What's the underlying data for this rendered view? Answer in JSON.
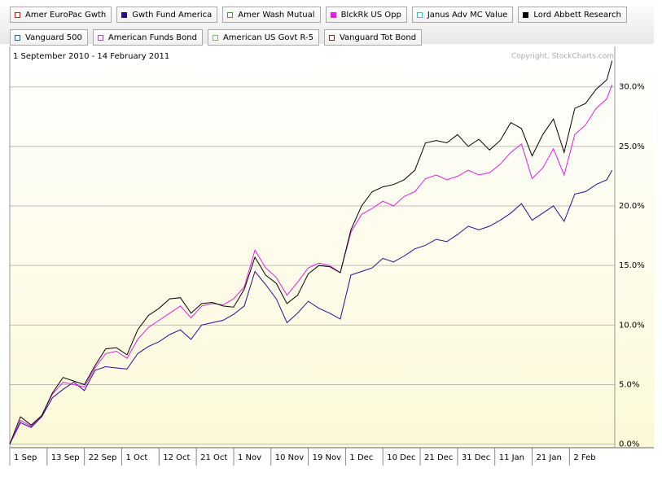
{
  "chart_data": {
    "type": "line",
    "subtitle": "1 September 2010 - 14 February 2011",
    "annotation": "Copyright, StockCharts.com",
    "x": [
      0,
      2,
      4,
      6,
      8,
      10,
      12,
      14,
      16,
      18,
      20,
      22,
      24,
      26,
      28,
      30,
      32,
      34,
      36,
      38,
      40,
      42,
      44,
      46,
      48,
      50,
      52,
      54,
      56,
      58,
      60,
      62,
      64,
      66,
      68,
      70,
      72,
      74,
      76,
      78,
      80,
      82,
      84,
      86,
      88,
      90,
      92,
      94,
      96,
      98,
      100,
      102,
      104,
      106,
      108,
      110,
      112,
      113
    ],
    "xlim": [
      0,
      113.5
    ],
    "xticks": [
      {
        "value": 0,
        "label": "1 Sep"
      },
      {
        "value": 7,
        "label": "13 Sep"
      },
      {
        "value": 14,
        "label": "22 Sep"
      },
      {
        "value": 21,
        "label": "1 Oct"
      },
      {
        "value": 28,
        "label": "12 Oct"
      },
      {
        "value": 35,
        "label": "21 Oct"
      },
      {
        "value": 42,
        "label": "1 Nov"
      },
      {
        "value": 49,
        "label": "10 Nov"
      },
      {
        "value": 56,
        "label": "19 Nov"
      },
      {
        "value": 63,
        "label": "1 Dec"
      },
      {
        "value": 70,
        "label": "10 Dec"
      },
      {
        "value": 77,
        "label": "21 Dec"
      },
      {
        "value": 84,
        "label": "31 Dec"
      },
      {
        "value": 91,
        "label": "11 Jan"
      },
      {
        "value": 98,
        "label": "21 Jan"
      },
      {
        "value": 105,
        "label": "2 Feb"
      }
    ],
    "ylim": [
      -0.3,
      33.4
    ],
    "yticks": [
      {
        "value": 0,
        "label": "0.0%"
      },
      {
        "value": 5,
        "label": "5.0%"
      },
      {
        "value": 10,
        "label": "10.0%"
      },
      {
        "value": 15,
        "label": "15.0%"
      },
      {
        "value": 20,
        "label": "20.0%"
      },
      {
        "value": 25,
        "label": "25.0%"
      },
      {
        "value": 30,
        "label": "30.0%"
      }
    ],
    "grid": true,
    "series": [
      {
        "name": "Amer EuroPac Gwth",
        "color": "#cc2222"
      },
      {
        "name": "Gwth Fund America",
        "color": "#2a0a99",
        "values": [
          0,
          1.8,
          1.4,
          2.3,
          3.9,
          4.6,
          5.2,
          4.5,
          6.2,
          6.5,
          6.4,
          6.3,
          7.6,
          8.2,
          8.6,
          9.2,
          9.6,
          8.8,
          10.0,
          10.2,
          10.4,
          10.9,
          11.6,
          14.5,
          13.4,
          12.2,
          10.2,
          11.0,
          12.0,
          11.4,
          11.0,
          10.5,
          14.2,
          14.5,
          14.8,
          15.6,
          15.3,
          15.8,
          16.4,
          16.7,
          17.2,
          17.0,
          17.6,
          18.3,
          18.0,
          18.3,
          18.8,
          19.4,
          20.2,
          18.8,
          19.4,
          20.0,
          18.7,
          21.0,
          21.2,
          21.8,
          22.2,
          23.0
        ]
      },
      {
        "name": "Amer Wash Mutual",
        "color": "#22aa22"
      },
      {
        "name": "BlckRk US Opp",
        "color": "#e020e0",
        "values": [
          0,
          2.0,
          1.5,
          2.4,
          4.2,
          5.2,
          5.0,
          4.8,
          6.4,
          7.6,
          7.8,
          7.2,
          8.8,
          9.8,
          10.4,
          11.0,
          11.6,
          10.6,
          11.6,
          11.8,
          11.7,
          12.2,
          13.2,
          16.3,
          14.8,
          14.0,
          12.5,
          13.6,
          14.8,
          15.2,
          15.0,
          14.4,
          17.8,
          19.3,
          19.8,
          20.4,
          20.0,
          20.8,
          21.2,
          22.3,
          22.6,
          22.2,
          22.5,
          23.0,
          22.6,
          22.8,
          23.5,
          24.5,
          25.2,
          22.3,
          23.2,
          24.8,
          22.6,
          26.0,
          26.8,
          28.2,
          29.0,
          30.2
        ]
      },
      {
        "name": "Janus Adv MC Value",
        "color": "#33cccc"
      },
      {
        "name": "Lord Abbett Research",
        "color": "#000000",
        "values": [
          0,
          2.3,
          1.6,
          2.4,
          4.3,
          5.6,
          5.3,
          5.0,
          6.6,
          8.0,
          8.1,
          7.5,
          9.6,
          10.8,
          11.4,
          12.2,
          12.3,
          11.0,
          11.8,
          11.9,
          11.6,
          11.5,
          13.0,
          15.7,
          14.2,
          13.5,
          11.8,
          12.5,
          14.3,
          15.0,
          14.9,
          14.4,
          18.0,
          20.0,
          21.2,
          21.6,
          21.8,
          22.2,
          23.0,
          25.3,
          25.5,
          25.3,
          26.0,
          25.0,
          25.6,
          24.7,
          25.5,
          27.0,
          26.5,
          24.2,
          26.0,
          27.3,
          24.5,
          28.2,
          28.6,
          29.8,
          30.6,
          32.2
        ]
      },
      {
        "name": "Vanguard 500",
        "color": "#336699"
      },
      {
        "name": "American Funds Bond",
        "color": "#9955bb"
      },
      {
        "name": "American US Govt R-5",
        "color": "#e08855"
      },
      {
        "name": "Vanguard Tot Bond",
        "color": "#663333"
      }
    ]
  }
}
